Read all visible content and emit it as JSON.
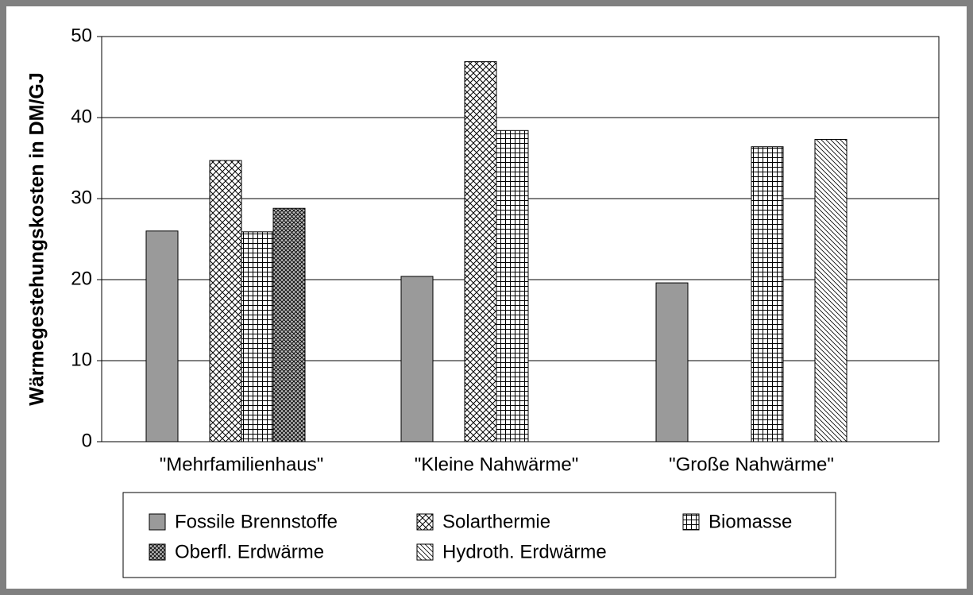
{
  "chart_data": {
    "type": "bar",
    "ylabel": "Wärmegestehungskosten in DM/GJ",
    "categories": [
      "\"Mehrfamilienhaus\"",
      "\"Kleine Nahwärme\"",
      "\"Große Nahwärme\""
    ],
    "series": [
      {
        "name": "Fossile Brennstoffe",
        "values": [
          26,
          20.4,
          19.6
        ]
      },
      {
        "name": "Solarthermie",
        "values": [
          34.7,
          46.9,
          null
        ]
      },
      {
        "name": "Biomasse",
        "values": [
          25.9,
          38.4,
          36.4
        ]
      },
      {
        "name": "Oberfl. Erdwärme",
        "values": [
          28.8,
          null,
          null
        ]
      },
      {
        "name": "Hydroth. Erdwärme",
        "values": [
          null,
          null,
          37.3
        ]
      }
    ],
    "ylim": [
      0,
      50
    ],
    "yticks": [
      0,
      10,
      20,
      30,
      40,
      50
    ],
    "grid": true
  }
}
